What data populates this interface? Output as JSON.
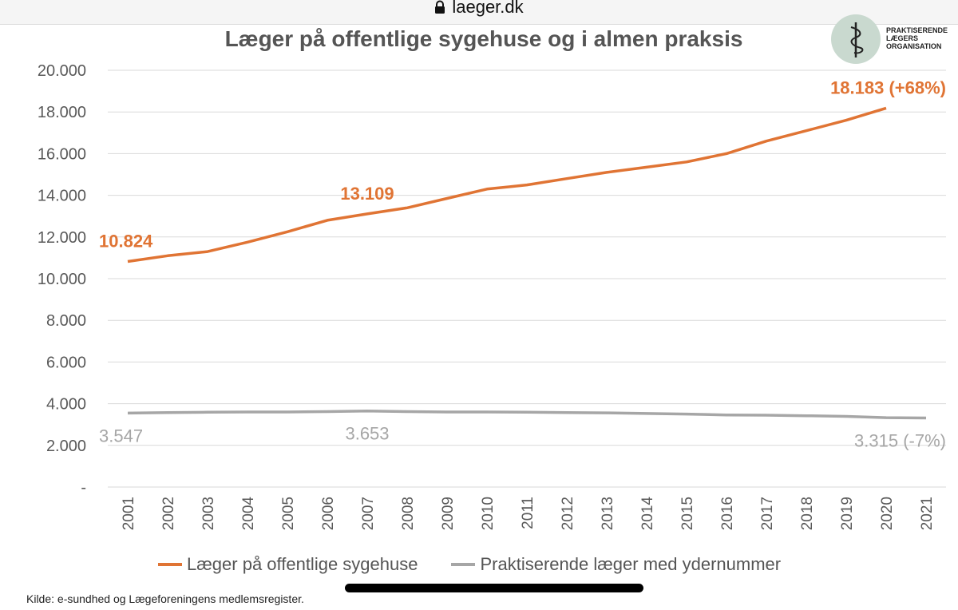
{
  "browser": {
    "url": "laeger.dk"
  },
  "logo": {
    "text": "PRAKTISERENDE LÆGERS ORGANISATION"
  },
  "source_note": "Kilde: e-sundhed og Lægeforeningens medlemsregister.",
  "colors": {
    "orange": "#E07434",
    "gray": "#A6A6A6",
    "title": "#555555"
  },
  "chart_data": {
    "type": "line",
    "title": "Læger på offentlige sygehuse og i almen praksis",
    "x": [
      "2001",
      "2002",
      "2003",
      "2004",
      "2005",
      "2006",
      "2007",
      "2008",
      "2009",
      "2010",
      "2011",
      "2012",
      "2013",
      "2014",
      "2015",
      "2016",
      "2017",
      "2018",
      "2019",
      "2020",
      "2021"
    ],
    "y_ticks": [
      "-",
      "2.000",
      "4.000",
      "6.000",
      "8.000",
      "10.000",
      "12.000",
      "14.000",
      "16.000",
      "18.000",
      "20.000"
    ],
    "ylim": [
      0,
      20000
    ],
    "grid": "horizontal",
    "legend_position": "bottom",
    "series": [
      {
        "name": "Læger på offentlige sygehuse",
        "color": "#E07434",
        "values": [
          10824,
          11100,
          11300,
          11750,
          12250,
          12800,
          13109,
          13400,
          13850,
          14300,
          14500,
          14800,
          15100,
          15350,
          15600,
          16000,
          16600,
          17100,
          17600,
          18183,
          null
        ]
      },
      {
        "name": "Praktiserende læger med ydernummer",
        "color": "#A6A6A6",
        "values": [
          3547,
          3570,
          3590,
          3600,
          3600,
          3620,
          3653,
          3620,
          3600,
          3600,
          3590,
          3570,
          3560,
          3530,
          3500,
          3460,
          3450,
          3420,
          3390,
          3330,
          3315
        ]
      }
    ],
    "annotations": [
      {
        "text": "10.824",
        "series": 0,
        "x": "2001",
        "color": "#E07434"
      },
      {
        "text": "13.109",
        "series": 0,
        "x": "2007",
        "color": "#E07434"
      },
      {
        "text": "18.183  (+68%)",
        "series": 0,
        "x": "2020",
        "color": "#E07434"
      },
      {
        "text": "3.547",
        "series": 1,
        "x": "2001",
        "color": "#A6A6A6"
      },
      {
        "text": "3.653",
        "series": 1,
        "x": "2007",
        "color": "#A6A6A6"
      },
      {
        "text": "3.315 (-7%)",
        "series": 1,
        "x": "2021",
        "color": "#A6A6A6"
      }
    ]
  }
}
